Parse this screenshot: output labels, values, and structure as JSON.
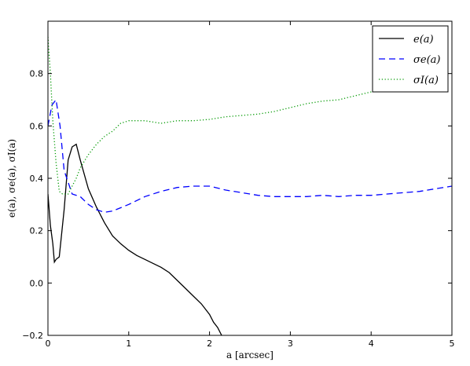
{
  "chart_data": {
    "type": "line",
    "xlabel": "a [arcsec]",
    "ylabel": "e(a), σe(a), σI(a)",
    "xlim": [
      0,
      5
    ],
    "ylim": [
      -0.2,
      1.0
    ],
    "x_ticks": [
      0,
      1,
      2,
      3,
      4,
      5
    ],
    "x_tick_labels": [
      "0",
      "1",
      "2",
      "3",
      "4",
      "5"
    ],
    "y_ticks": [
      -0.2,
      0.0,
      0.2,
      0.4,
      0.6,
      0.8
    ],
    "y_tick_labels": [
      "−0.2",
      "0.0",
      "0.2",
      "0.4",
      "0.6",
      "0.8"
    ],
    "grid": false,
    "legend": "top-right",
    "series": [
      {
        "name": "e(a)",
        "color": "#000000",
        "style": "solid",
        "x": [
          0.0,
          0.03,
          0.06,
          0.08,
          0.1,
          0.14,
          0.2,
          0.25,
          0.3,
          0.35,
          0.4,
          0.5,
          0.6,
          0.7,
          0.8,
          0.9,
          1.0,
          1.1,
          1.2,
          1.3,
          1.4,
          1.5,
          1.6,
          1.7,
          1.8,
          1.9,
          2.0,
          2.05,
          2.1,
          2.15
        ],
        "y": [
          0.34,
          0.22,
          0.15,
          0.08,
          0.09,
          0.1,
          0.28,
          0.47,
          0.52,
          0.53,
          0.47,
          0.36,
          0.29,
          0.23,
          0.18,
          0.15,
          0.125,
          0.105,
          0.09,
          0.075,
          0.06,
          0.04,
          0.01,
          -0.02,
          -0.05,
          -0.08,
          -0.12,
          -0.15,
          -0.17,
          -0.2
        ]
      },
      {
        "name": "σe(a)",
        "color": "#0000ff",
        "style": "dashed",
        "x": [
          0.0,
          0.05,
          0.1,
          0.15,
          0.2,
          0.3,
          0.4,
          0.5,
          0.6,
          0.7,
          0.8,
          1.0,
          1.2,
          1.4,
          1.6,
          1.8,
          2.0,
          2.2,
          2.4,
          2.6,
          2.8,
          3.0,
          3.2,
          3.4,
          3.6,
          3.8,
          4.0,
          4.2,
          4.4,
          4.6,
          4.8,
          5.0
        ],
        "y": [
          0.6,
          0.68,
          0.7,
          0.6,
          0.43,
          0.34,
          0.33,
          0.3,
          0.28,
          0.27,
          0.275,
          0.3,
          0.33,
          0.35,
          0.365,
          0.37,
          0.37,
          0.355,
          0.345,
          0.335,
          0.33,
          0.33,
          0.33,
          0.335,
          0.33,
          0.335,
          0.335,
          0.34,
          0.345,
          0.35,
          0.36,
          0.37
        ]
      },
      {
        "name": "σI(a)",
        "color": "#009900",
        "style": "dotted",
        "x": [
          0.0,
          0.03,
          0.06,
          0.1,
          0.14,
          0.18,
          0.25,
          0.3,
          0.35,
          0.4,
          0.5,
          0.6,
          0.7,
          0.8,
          0.9,
          1.0,
          1.2,
          1.4,
          1.6,
          1.8,
          2.0,
          2.2,
          2.4,
          2.6,
          2.8,
          3.0,
          3.2,
          3.4,
          3.6,
          3.8,
          4.0,
          4.2,
          4.4
        ],
        "y": [
          0.94,
          0.8,
          0.62,
          0.46,
          0.35,
          0.34,
          0.34,
          0.37,
          0.4,
          0.44,
          0.49,
          0.53,
          0.56,
          0.58,
          0.61,
          0.62,
          0.62,
          0.61,
          0.62,
          0.62,
          0.625,
          0.635,
          0.64,
          0.645,
          0.655,
          0.67,
          0.685,
          0.695,
          0.7,
          0.715,
          0.73,
          0.745,
          0.76
        ]
      }
    ]
  }
}
